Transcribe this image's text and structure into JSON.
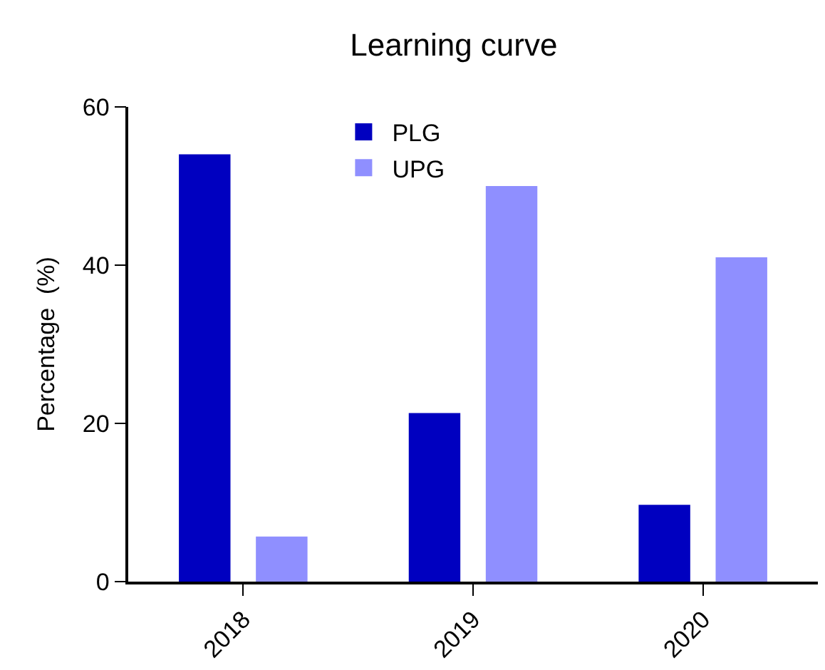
{
  "chart_data": {
    "type": "bar",
    "title": "Learning curve",
    "ylabel": "Percentage  (%)",
    "categories": [
      "2018",
      "2019",
      "2020"
    ],
    "series": [
      {
        "name": "PLG",
        "color": "#0000c0",
        "values": [
          54,
          21.3,
          9.7
        ]
      },
      {
        "name": "UPG",
        "color": "#8f8fff",
        "values": [
          5.7,
          50,
          41
        ]
      }
    ],
    "ylim": [
      0,
      60
    ],
    "yticks": [
      0,
      20,
      40,
      60
    ],
    "legend": "top"
  }
}
